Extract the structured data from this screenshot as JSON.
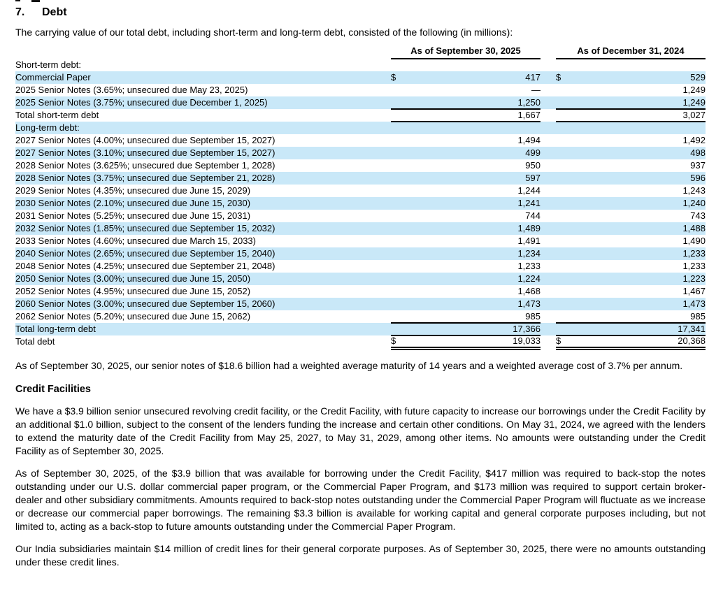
{
  "colors": {
    "row_shade": "#c9e8f8",
    "text": "#000000",
    "rule": "#000000"
  },
  "heading": {
    "number": "7.",
    "title": "Debt"
  },
  "intro": "The carrying value of our total debt, including short-term and long-term debt, consisted of the following (in millions):",
  "table": {
    "columns": [
      "As of September 30, 2025",
      "As of December 31, 2024"
    ],
    "rows": [
      {
        "label": "Short-term debt:",
        "indent": 0,
        "dollar": false,
        "v1": "",
        "v2": "",
        "rule": ""
      },
      {
        "label": "Commercial Paper",
        "indent": 2,
        "dollar": true,
        "v1": "417",
        "v2": "529",
        "rule": ""
      },
      {
        "label": "2025 Senior Notes (3.65%; unsecured due May 23, 2025)",
        "indent": 3,
        "dollar": false,
        "v1": "—",
        "v2": "1,249",
        "rule": ""
      },
      {
        "label": "2025 Senior Notes (3.75%; unsecured due December 1, 2025)",
        "indent": 3,
        "dollar": false,
        "v1": "1,250",
        "v2": "1,249",
        "rule": "single"
      },
      {
        "label": "Total short-term debt",
        "indent": 1,
        "dollar": false,
        "v1": "1,667",
        "v2": "3,027",
        "rule": "single"
      },
      {
        "label": "Long-term debt:",
        "indent": 0,
        "dollar": false,
        "v1": "",
        "v2": "",
        "rule": ""
      },
      {
        "label": "2027 Senior Notes (4.00%; unsecured due September 15, 2027)",
        "indent": 3,
        "dollar": false,
        "v1": "1,494",
        "v2": "1,492",
        "rule": ""
      },
      {
        "label": "2027 Senior Notes (3.10%; unsecured due September 15, 2027)",
        "indent": 3,
        "dollar": false,
        "v1": "499",
        "v2": "498",
        "rule": ""
      },
      {
        "label": "2028 Senior Notes (3.625%; unsecured due September 1, 2028)",
        "indent": 3,
        "dollar": false,
        "v1": "950",
        "v2": "937",
        "rule": ""
      },
      {
        "label": "2028 Senior Notes (3.75%; unsecured due September 21, 2028)",
        "indent": 3,
        "dollar": false,
        "v1": "597",
        "v2": "596",
        "rule": ""
      },
      {
        "label": "2029 Senior Notes (4.35%; unsecured due June 15, 2029)",
        "indent": 3,
        "dollar": false,
        "v1": "1,244",
        "v2": "1,243",
        "rule": ""
      },
      {
        "label": "2030 Senior Notes (2.10%; unsecured due June 15, 2030)",
        "indent": 3,
        "dollar": false,
        "v1": "1,241",
        "v2": "1,240",
        "rule": ""
      },
      {
        "label": "2031 Senior Notes (5.25%; unsecured due June 15, 2031)",
        "indent": 3,
        "dollar": false,
        "v1": "744",
        "v2": "743",
        "rule": ""
      },
      {
        "label": "2032 Senior Notes (1.85%; unsecured due September 15, 2032)",
        "indent": 3,
        "dollar": false,
        "v1": "1,489",
        "v2": "1,488",
        "rule": ""
      },
      {
        "label": "2033 Senior Notes (4.60%; unsecured due March 15, 2033)",
        "indent": 3,
        "dollar": false,
        "v1": "1,491",
        "v2": "1,490",
        "rule": ""
      },
      {
        "label": "2040 Senior Notes (2.65%; unsecured due September 15, 2040)",
        "indent": 3,
        "dollar": false,
        "v1": "1,234",
        "v2": "1,233",
        "rule": ""
      },
      {
        "label": "2048 Senior Notes (4.25%; unsecured due September 21, 2048)",
        "indent": 3,
        "dollar": false,
        "v1": "1,233",
        "v2": "1,233",
        "rule": ""
      },
      {
        "label": "2050 Senior Notes (3.00%; unsecured due June 15, 2050)",
        "indent": 3,
        "dollar": false,
        "v1": "1,224",
        "v2": "1,223",
        "rule": ""
      },
      {
        "label": "2052 Senior Notes (4.95%; unsecured due June 15, 2052)",
        "indent": 3,
        "dollar": false,
        "v1": "1,468",
        "v2": "1,467",
        "rule": ""
      },
      {
        "label": "2060 Senior Notes (3.00%; unsecured due September 15, 2060)",
        "indent": 3,
        "dollar": false,
        "v1": "1,473",
        "v2": "1,473",
        "rule": ""
      },
      {
        "label": "2062 Senior Notes (5.20%; unsecured due June 15, 2062)",
        "indent": 3,
        "dollar": false,
        "v1": "985",
        "v2": "985",
        "rule": "single"
      },
      {
        "label": "Total long-term debt",
        "indent": 1,
        "dollar": false,
        "v1": "17,366",
        "v2": "17,341",
        "rule": "single"
      },
      {
        "label": "Total debt",
        "indent": 1,
        "dollar": true,
        "v1": "19,033",
        "v2": "20,368",
        "rule": "double"
      }
    ]
  },
  "paragraphs": {
    "maturity": "As of September 30, 2025, our senior notes of $18.6 billion had a weighted average maturity of 14 years and a weighted average cost of 3.7% per annum.",
    "credit_facilities_heading": "Credit Facilities",
    "credit_1": "We have a $3.9 billion senior unsecured revolving credit facility, or the Credit Facility, with future capacity to increase our borrowings under the Credit Facility by an additional $1.0 billion, subject to the consent of the lenders funding the increase and certain other conditions. On May 31, 2024, we agreed with the lenders to extend the maturity date of the Credit Facility from May 25, 2027, to May 31, 2029, among other items. No amounts were outstanding under the Credit Facility as of September 30, 2025.",
    "credit_2": "As of September 30, 2025, of the $3.9 billion that was available for borrowing under the Credit Facility, $417 million was required to back-stop the notes outstanding under our U.S. dollar commercial paper program, or the Commercial Paper Program, and $173 million was required to support certain broker-dealer and other subsidiary commitments. Amounts required to back-stop notes outstanding under the Commercial Paper Program will fluctuate as we increase or decrease our commercial paper borrowings. The remaining $3.3 billion is available for working capital and general corporate purposes including, but not limited to, acting as a back-stop to future amounts outstanding under the Commercial Paper Program.",
    "credit_3": "Our India subsidiaries maintain $14 million of credit lines for their general corporate purposes. As of September 30, 2025, there were no amounts outstanding under these credit lines."
  }
}
